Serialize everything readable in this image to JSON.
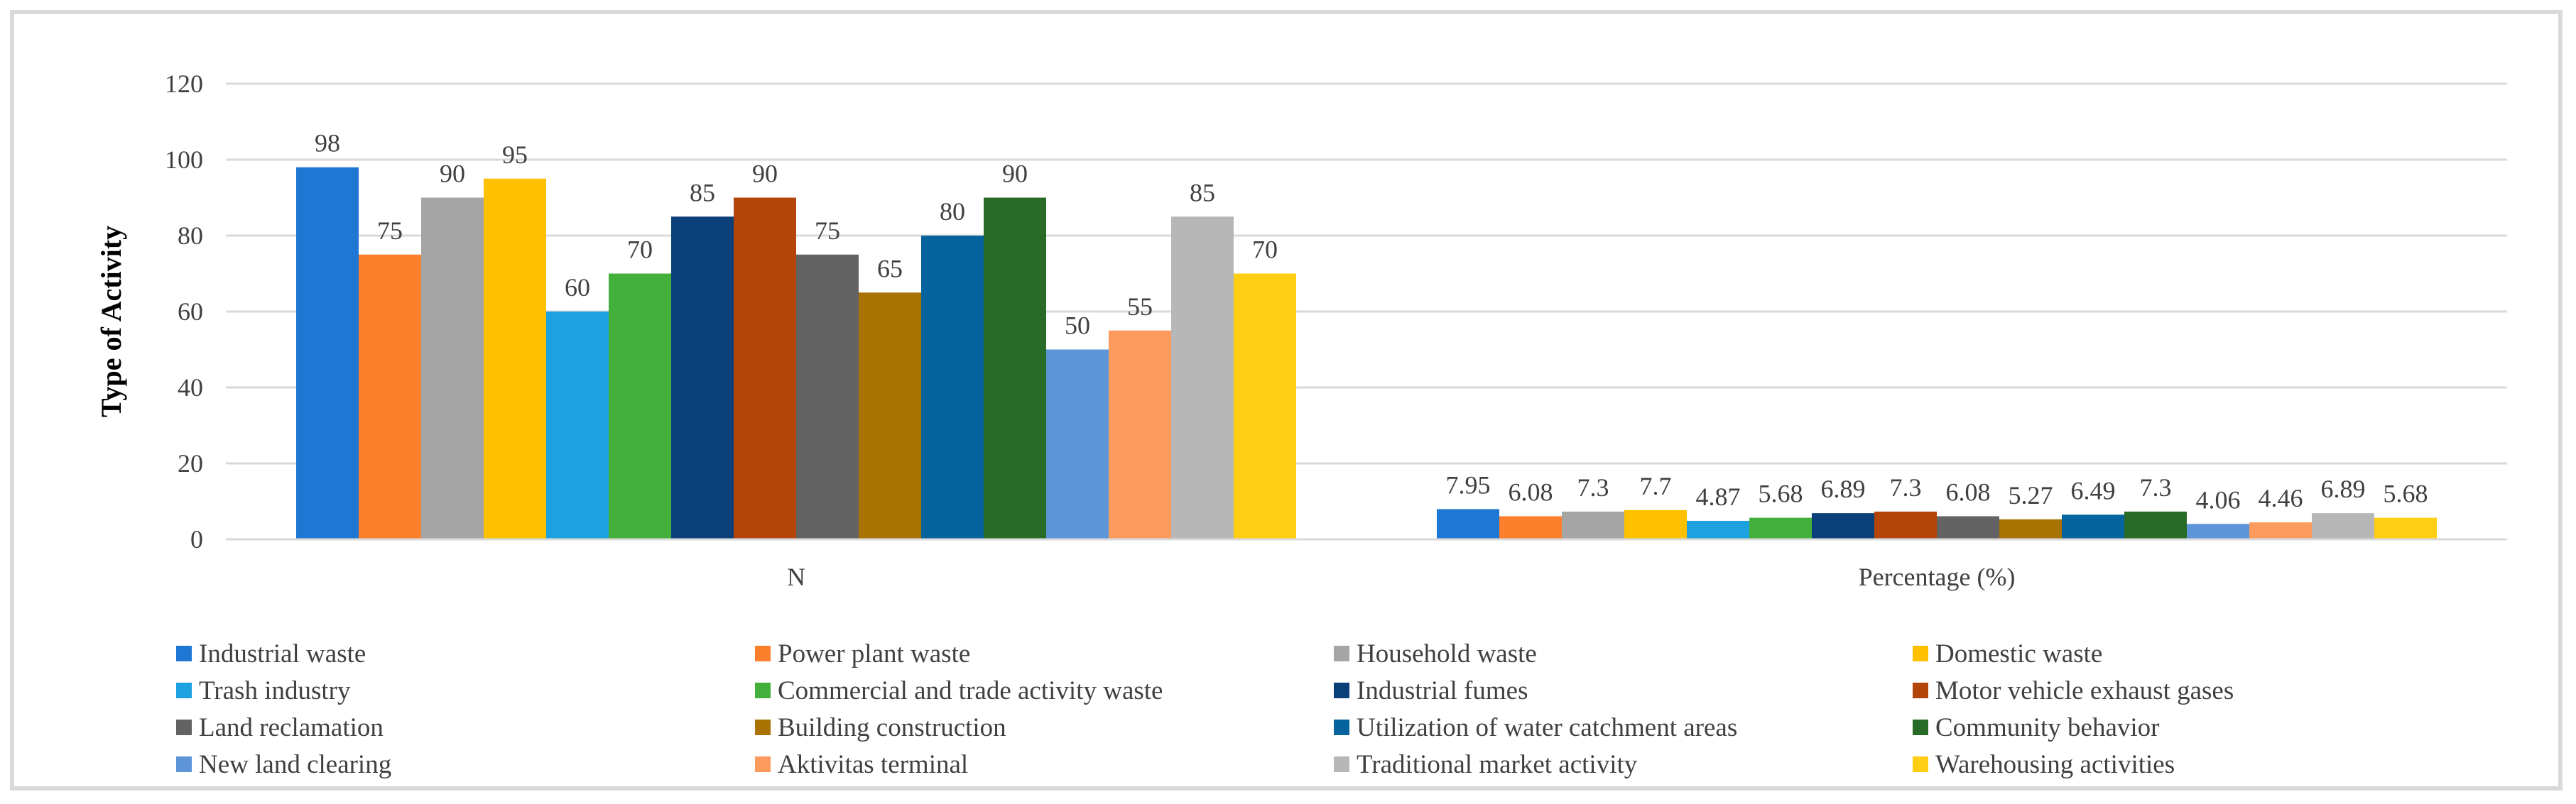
{
  "chart_data": {
    "type": "bar",
    "title": "",
    "xlabel": "",
    "ylabel": "Type of Activity",
    "ylim": [
      0,
      120
    ],
    "yticks": [
      "0",
      "20",
      "40",
      "60",
      "80",
      "100",
      "120"
    ],
    "grid": true,
    "legend_position": "bottom",
    "categories": [
      "N",
      "Percentage (%)"
    ],
    "series": [
      {
        "name": "Industrial waste",
        "color": "#1f77d4",
        "values": [
          98,
          7.95
        ]
      },
      {
        "name": "Power plant waste",
        "color": "#fd7f2c",
        "values": [
          75,
          6.08
        ]
      },
      {
        "name": "Household waste",
        "color": "#a5a5a5",
        "values": [
          90,
          7.3
        ]
      },
      {
        "name": "Domestic waste",
        "color": "#ffc000",
        "values": [
          95,
          7.7
        ]
      },
      {
        "name": "Trash industry",
        "color": "#1ea1e0",
        "values": [
          60,
          4.87
        ]
      },
      {
        "name": "Commercial and trade activity waste",
        "color": "#44b03c",
        "values": [
          70,
          5.68
        ]
      },
      {
        "name": "Industrial fumes",
        "color": "#0b3f7a",
        "values": [
          85,
          6.89
        ]
      },
      {
        "name": "Motor vehicle exhaust gases",
        "color": "#b3440a",
        "values": [
          90,
          7.3
        ]
      },
      {
        "name": "Land reclamation",
        "color": "#636363",
        "values": [
          75,
          6.08
        ]
      },
      {
        "name": "Building construction",
        "color": "#a87302",
        "values": [
          65,
          5.27
        ]
      },
      {
        "name": "Utilization of water catchment areas",
        "color": "#05639e",
        "values": [
          80,
          6.49
        ]
      },
      {
        "name": "Community behavior",
        "color": "#276b27",
        "values": [
          90,
          7.3
        ]
      },
      {
        "name": "New land clearing",
        "color": "#5e95d9",
        "values": [
          50,
          4.06
        ]
      },
      {
        "name": "Aktivitas terminal",
        "color": "#fd9a5e",
        "values": [
          55,
          4.46
        ]
      },
      {
        "name": "Traditional market activity",
        "color": "#b7b7b7",
        "values": [
          85,
          6.89
        ]
      },
      {
        "name": "Warehousing activities",
        "color": "#ffcd12",
        "values": [
          70,
          5.68
        ]
      }
    ],
    "data_labels": [
      [
        "98",
        "75",
        "90",
        "95",
        "60",
        "70",
        "85",
        "90",
        "75",
        "65",
        "80",
        "90",
        "50",
        "55",
        "85",
        "70"
      ],
      [
        "7.95",
        "6.08",
        "7.3",
        "7.7",
        "4.87",
        "5.68",
        "6.89",
        "7.3",
        "6.08",
        "5.27",
        "6.49",
        "7.3",
        "4.06",
        "4.46",
        "6.89",
        "5.68"
      ]
    ]
  }
}
